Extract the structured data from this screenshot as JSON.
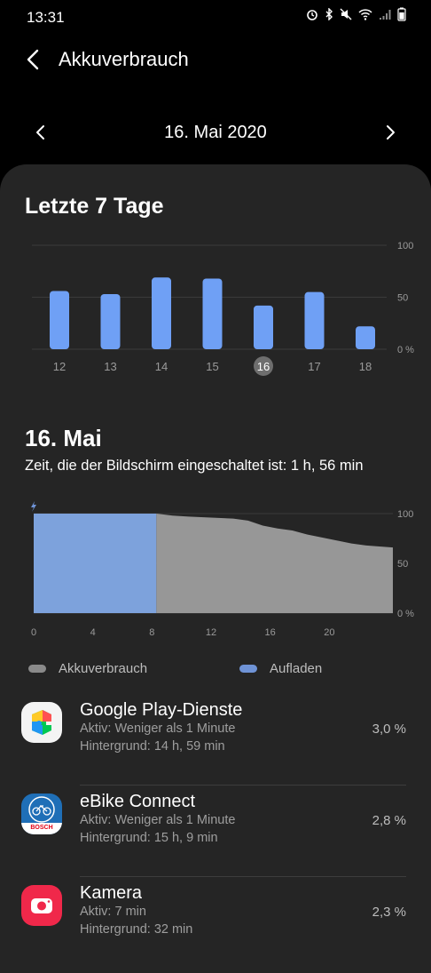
{
  "status": {
    "time": "13:31"
  },
  "header": {
    "title": "Akkuverbrauch"
  },
  "date_nav": {
    "label": "16. Mai 2020"
  },
  "weekly": {
    "title": "Letzte 7 Tage",
    "y_labels": [
      "100",
      "50",
      "0 %"
    ],
    "bar_color": "#6fa0f5",
    "selected_day": "16"
  },
  "day": {
    "title": "16. Mai",
    "screen_time": "Zeit, die der Bildschirm eingeschaltet ist: 1 h, 56 min"
  },
  "legend": {
    "usage_label": "Akkuverbrauch",
    "charging_label": "Aufladen",
    "usage_color": "#8a8a8a",
    "charging_color": "#6f93d6"
  },
  "chart_data": [
    {
      "type": "bar",
      "categories": [
        "12",
        "13",
        "14",
        "15",
        "16",
        "17",
        "18"
      ],
      "values": [
        56,
        53,
        69,
        68,
        42,
        55,
        22
      ],
      "ylim": [
        0,
        100
      ],
      "y_ticks": [
        "100",
        "50",
        "0 %"
      ],
      "title": "Letzte 7 Tage"
    },
    {
      "type": "area",
      "x_ticks": [
        "0",
        "4",
        "8",
        "12",
        "16",
        "20"
      ],
      "y_ticks": [
        "100",
        "50",
        "0 %"
      ],
      "ylim": [
        0,
        100
      ],
      "xlim": [
        0,
        24.3
      ],
      "series": [
        {
          "name": "Aufladen",
          "x": [
            0,
            8.3
          ],
          "y": [
            100,
            100
          ]
        },
        {
          "name": "Akkuverbrauch",
          "x": [
            8.3,
            9.4,
            10.5,
            12,
            13.5,
            14.5,
            15.5,
            16.5,
            17.5,
            18.5,
            19.5,
            20.5,
            21.5,
            22.5,
            24.3
          ],
          "y": [
            100,
            98,
            97,
            96,
            95,
            93,
            88,
            85,
            83,
            79,
            76,
            73,
            70,
            68,
            66
          ]
        }
      ]
    }
  ],
  "apps": [
    {
      "name": "Google Play-Dienste",
      "active": "Aktiv: Weniger als 1 Minute",
      "background": "Hintergrund: 14 h, 59 min",
      "percent": "3,0 %",
      "icon": "google-play-services-icon"
    },
    {
      "name": "eBike Connect",
      "active": "Aktiv: Weniger als 1 Minute",
      "background": "Hintergrund: 15 h, 9 min",
      "percent": "2,8 %",
      "icon": "ebike-connect-icon",
      "icon_text": "BOSCH"
    },
    {
      "name": "Kamera",
      "active": "Aktiv: 7 min",
      "background": "Hintergrund: 32 min",
      "percent": "2,3 %",
      "icon": "camera-icon"
    }
  ]
}
